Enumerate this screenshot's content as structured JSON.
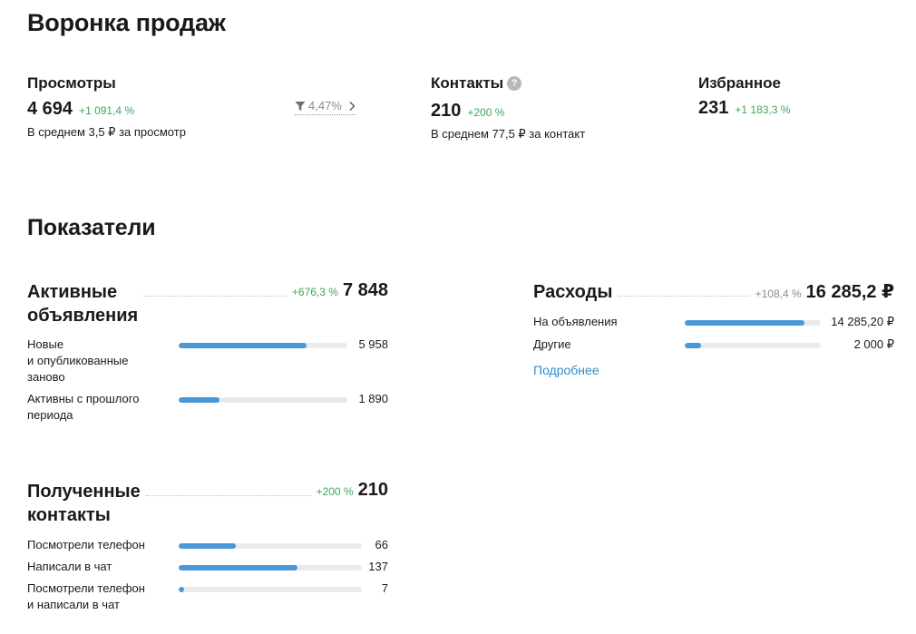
{
  "funnel": {
    "title": "Воронка продаж",
    "views": {
      "label": "Просмотры",
      "value": "4 694",
      "delta": "+1 091,4 %",
      "sub": "В среднем 3,5 ₽ за просмотр"
    },
    "conversion": {
      "value": "4,47%",
      "icon": "filter-icon"
    },
    "contacts": {
      "label": "Контакты",
      "help": "?",
      "value": "210",
      "delta": "+200 %",
      "sub": "В среднем 77,5 ₽ за контакт"
    },
    "favorites": {
      "label": "Избранное",
      "value": "231",
      "delta": "+1 183,3 %"
    }
  },
  "indicators": {
    "title": "Показатели",
    "active_ads": {
      "title_line1": "Активные",
      "title_line2": "объявления",
      "delta": "+676,3 %",
      "total": "7 848",
      "rows": [
        {
          "label": "Новые и опубликованные заново",
          "label_lines": [
            "Новые",
            "и опубликованные",
            "заново"
          ],
          "value": "5 958",
          "fraction": 0.76
        },
        {
          "label": "Активны с прошлого периода",
          "label_lines": [
            "Активны с прошлого",
            "периода"
          ],
          "value": "1 890",
          "fraction": 0.24
        }
      ]
    },
    "expenses": {
      "title": "Расходы",
      "delta": "+108,4 %",
      "total": "16 285,2 ₽",
      "rows": [
        {
          "label": "На объявления",
          "value": "14 285,20 ₽",
          "fraction": 0.88
        },
        {
          "label": "Другие",
          "value": "2 000 ₽",
          "fraction": 0.12
        }
      ],
      "more": "Подробнее"
    },
    "contacts": {
      "title_line1": "Полученные",
      "title_line2": "контакты",
      "delta": "+200 %",
      "total": "210",
      "rows": [
        {
          "label": "Посмотрели телефон",
          "label_lines": [
            "Посмотрели телефон"
          ],
          "value": "66",
          "fraction": 0.31
        },
        {
          "label": "Написали в чат",
          "label_lines": [
            "Написали в чат"
          ],
          "value": "137",
          "fraction": 0.65
        },
        {
          "label": "Посмотрели телефон и написали в чат",
          "label_lines": [
            "Посмотрели телефон",
            "и написали в чат"
          ],
          "value": "7",
          "fraction": 0.03
        }
      ]
    }
  },
  "colors": {
    "accent": "#4a98d8",
    "positive": "#3aa857",
    "link": "#2f8ccd",
    "track": "#ebebeb"
  }
}
